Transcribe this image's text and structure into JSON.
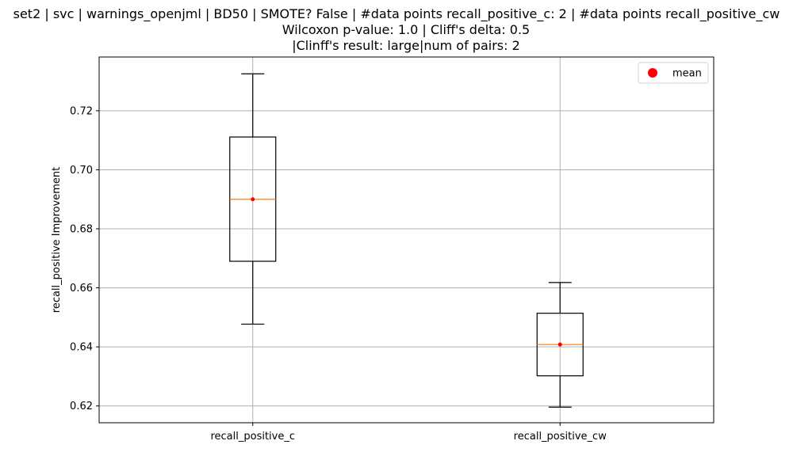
{
  "chart_data": {
    "type": "box",
    "title_lines": [
      "set2 | svc | warnings_openjml | BD50 | SMOTE? False | #data points recall_positive_c: 2 | #data points recall_positive_cw",
      "Wilcoxon p-value: 1.0 | Cliff's delta: 0.5",
      "|Clinff's result: large|num of pairs: 2"
    ],
    "ylabel": "recall_positive Improvement",
    "xlabel": "",
    "ylim": [
      0.6143,
      0.7382
    ],
    "yticks": [
      0.62,
      0.64,
      0.66,
      0.68,
      0.7,
      0.72
    ],
    "ytick_labels": [
      "0.62",
      "0.64",
      "0.66",
      "0.68",
      "0.70",
      "0.72"
    ],
    "grid": true,
    "legend": {
      "placement": "top-right",
      "entries": [
        "mean"
      ]
    },
    "colors": {
      "box": "#000000",
      "median": "#ff7f0e",
      "mean": "#ff0000",
      "grid": "#b0b0b0"
    },
    "boxes": [
      {
        "category": "recall_positive_c",
        "whisker_low": 0.6477,
        "q1": 0.669,
        "median": 0.69,
        "q3": 0.7111,
        "whisker_high": 0.7325,
        "mean": 0.69
      },
      {
        "category": "recall_positive_cw",
        "whisker_low": 0.6196,
        "q1": 0.6302,
        "median": 0.6408,
        "q3": 0.6514,
        "whisker_high": 0.6618,
        "mean": 0.6408
      }
    ]
  }
}
